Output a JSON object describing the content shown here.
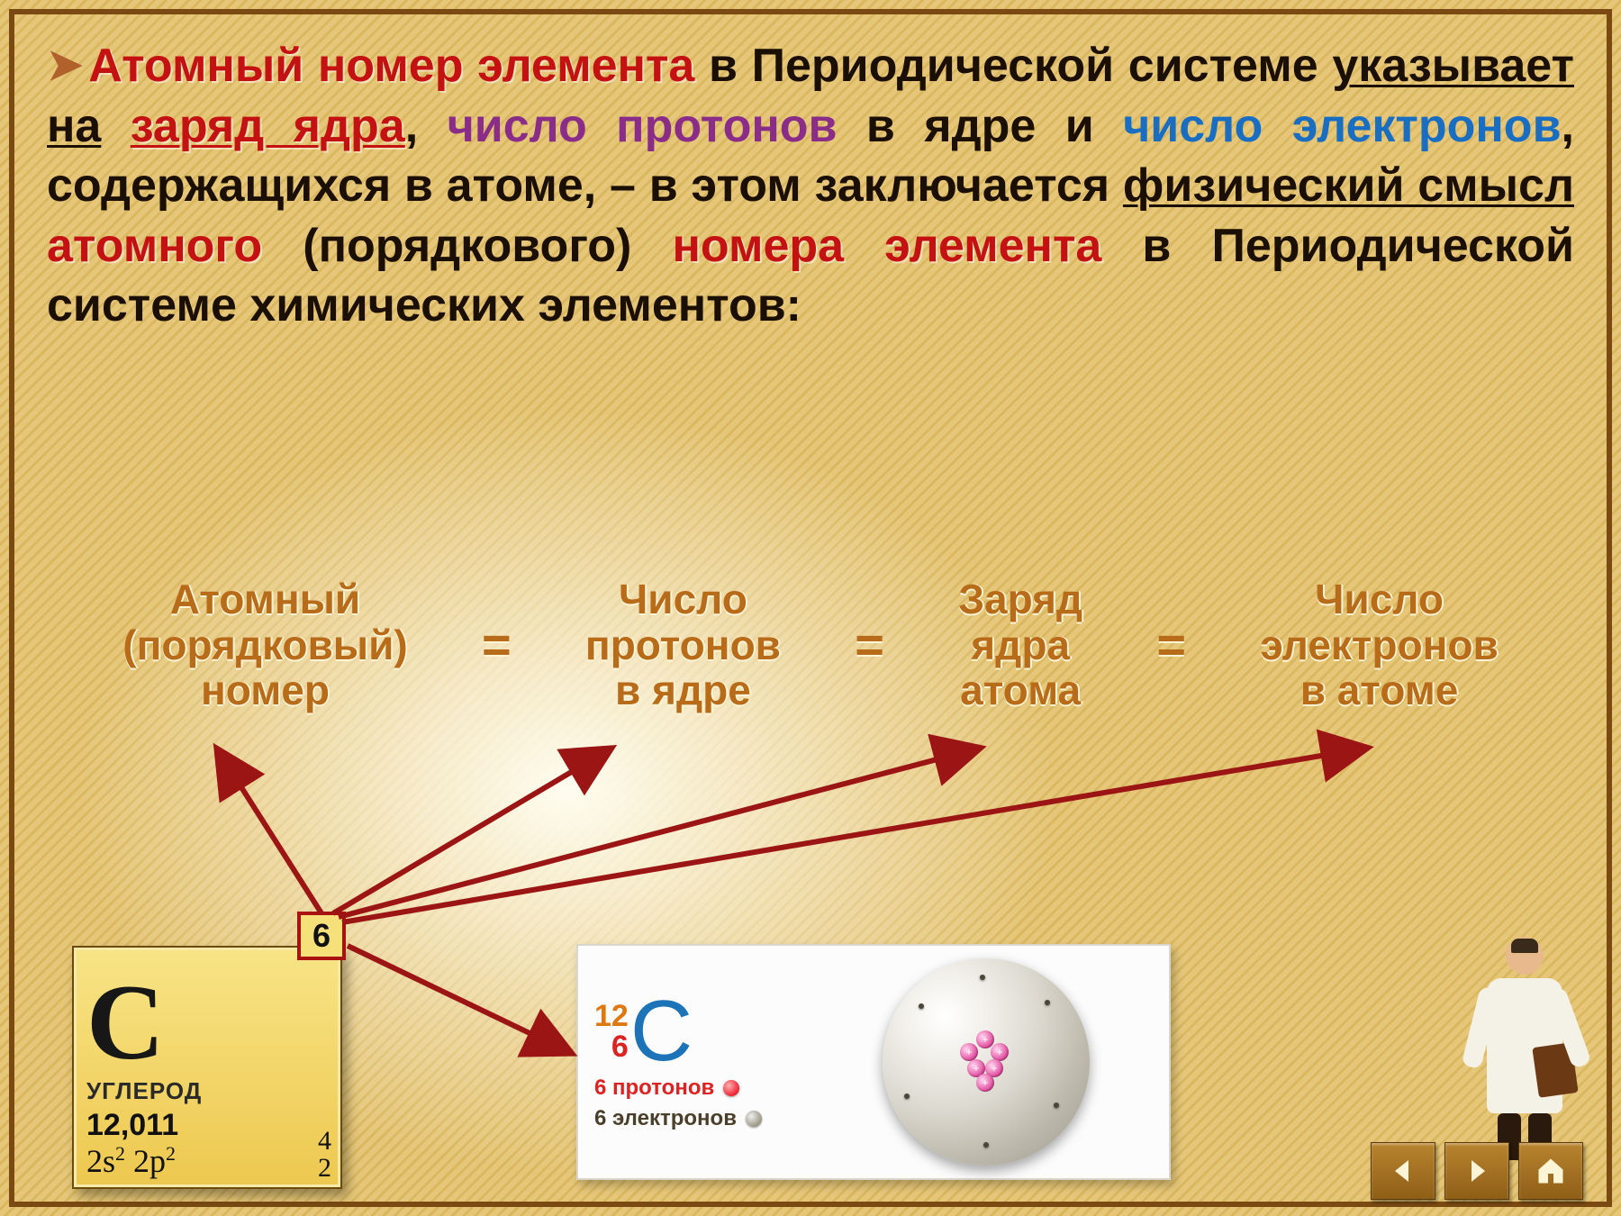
{
  "paragraph": {
    "p1_red": "Атомный номер элемента",
    "p1_tail": " в Периодической системе",
    "p2_lead": " ",
    "p2_u1": "указывает на",
    "p2_red": "заряд ядра",
    "p2_comma": ", ",
    "p2_purple": "число протонов",
    "p3_lead": " в ядре и ",
    "p3_blue": "число электронов",
    "p3_tail": ", содержащихся в атоме, – в этом заключается",
    "p4_u": "физический смысл",
    "p4_red1": "атомного",
    "p4_mid": " (порядкового) ",
    "p4_red2": "номера элемента",
    "p4_tail": " в Периодической системе химических элементов:"
  },
  "equation": {
    "c1l1": "Атомный",
    "c1l2": "(порядковый)",
    "c1l3": "номер",
    "c2l1": "Число",
    "c2l2": "протонов",
    "c2l3": "в ядре",
    "c3l1": "Заряд",
    "c3l2": "ядра",
    "c3l3": "атома",
    "c4l1": "Число",
    "c4l2": "электронов",
    "c4l3": "в атоме",
    "eq": "="
  },
  "cell": {
    "symbol": "C",
    "name": "УГЛЕРОД",
    "mass": "12,011",
    "econf_html": "2s<sup>2</sup> 2p<sup>2</sup>",
    "r1": "4",
    "r2": "2",
    "atomic_number": "6"
  },
  "atom": {
    "mass_num": "12",
    "z_num": "6",
    "symbol": "С",
    "protons_label": "6 протонов",
    "electrons_label": "6 электронов"
  },
  "colors": {
    "arrow": "#9c1515"
  }
}
